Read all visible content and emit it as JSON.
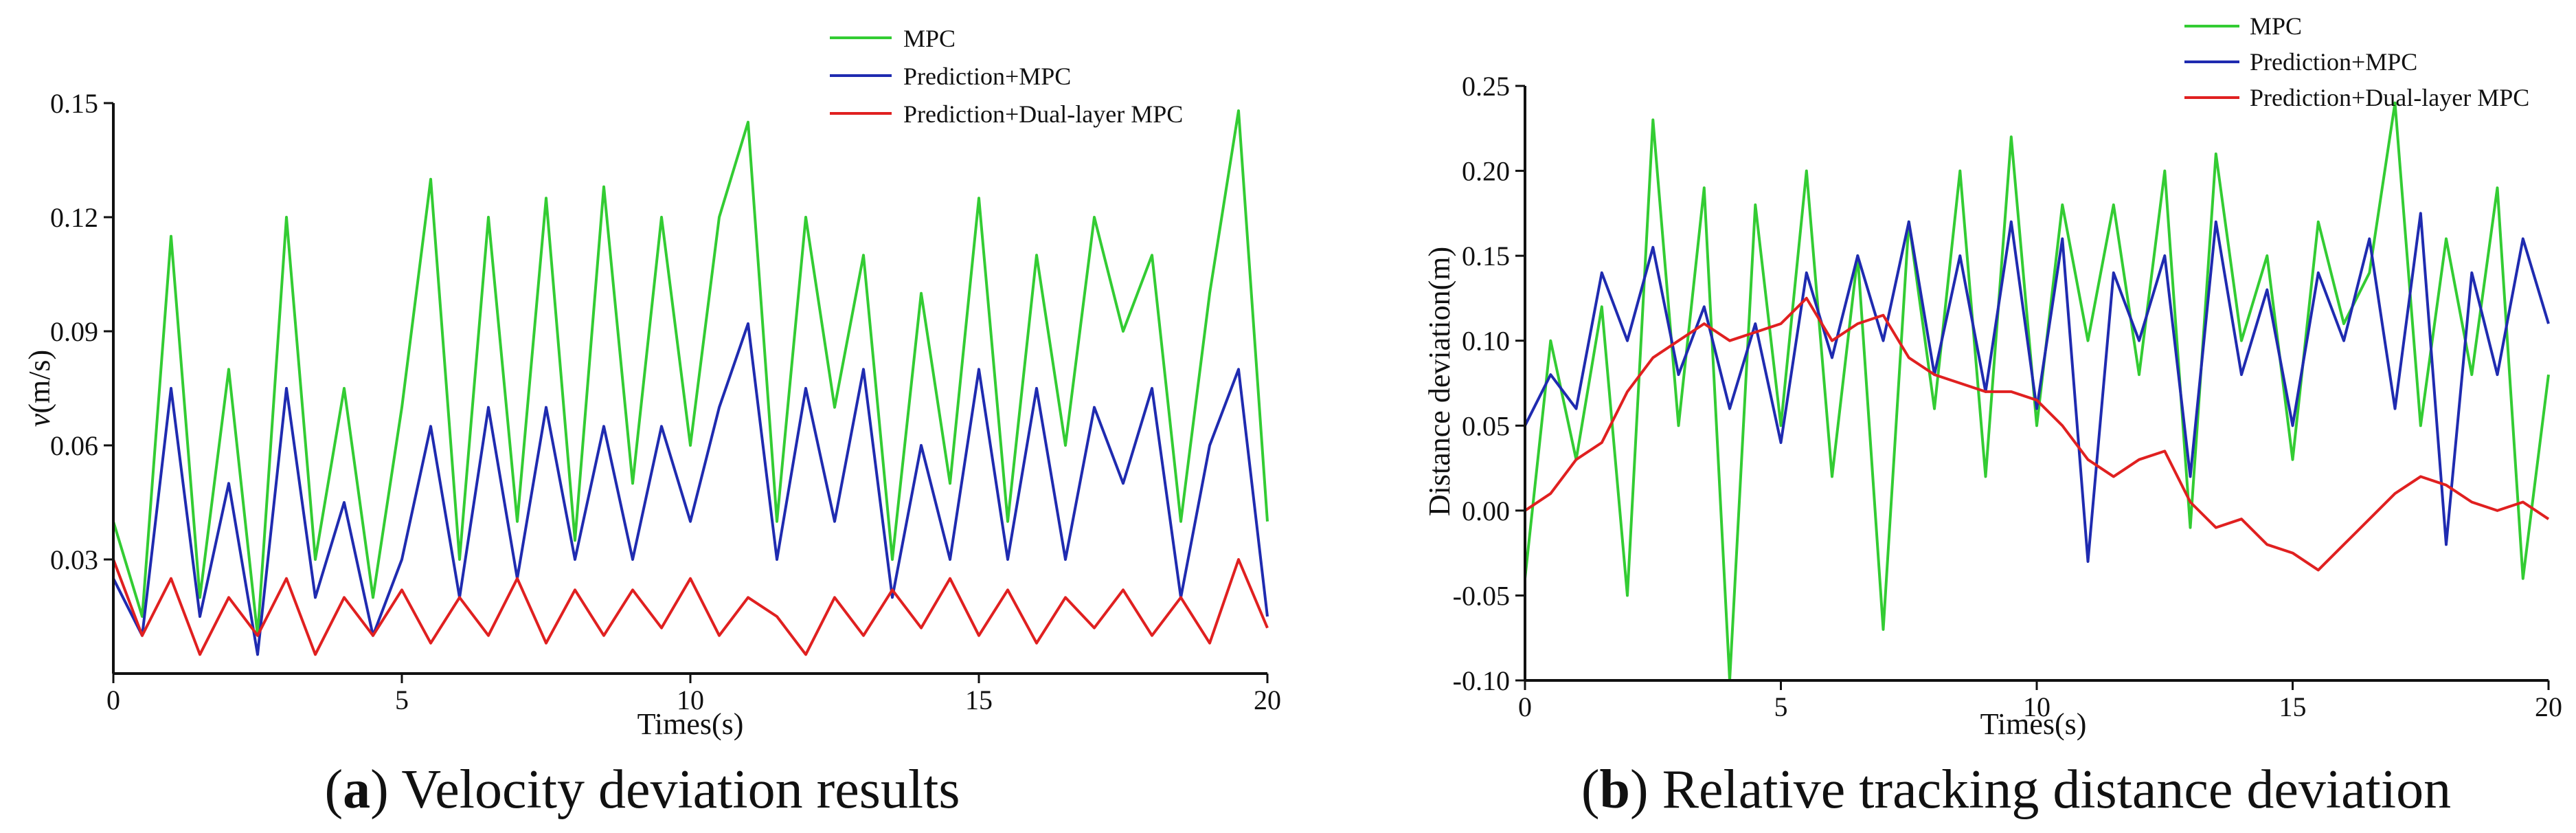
{
  "chart_data": [
    {
      "id": "a",
      "type": "line",
      "caption_letter": "a",
      "caption_text": ") Velocity deviation results",
      "xlabel": "Times(s)",
      "ylabel_var": "v",
      "ylabel_unit": "(m/s)",
      "xlim": [
        0,
        20
      ],
      "ylim": [
        0,
        0.15
      ],
      "xticks": [
        0,
        5,
        10,
        15,
        20
      ],
      "xtick_labels": [
        "0",
        "5",
        "10",
        "15",
        "20"
      ],
      "yticks": [
        0.03,
        0.06,
        0.09,
        0.12,
        0.15
      ],
      "ytick_labels": [
        "0.03",
        "0.06",
        "0.09",
        "0.12",
        "0.15"
      ],
      "legend_position": "top-right",
      "series": [
        {
          "name": "MPC",
          "color": "#33cc33",
          "x": [
            0,
            0.5,
            1,
            1.5,
            2,
            2.5,
            3,
            3.5,
            4,
            4.5,
            5,
            5.5,
            6,
            6.5,
            7,
            7.5,
            8,
            8.5,
            9,
            9.5,
            10,
            10.5,
            11,
            11.5,
            12,
            12.5,
            13,
            13.5,
            14,
            14.5,
            15,
            15.5,
            16,
            16.5,
            17,
            17.5,
            18,
            18.5,
            19,
            19.5,
            20
          ],
          "y": [
            0.04,
            0.015,
            0.115,
            0.02,
            0.08,
            0.01,
            0.12,
            0.03,
            0.075,
            0.02,
            0.07,
            0.13,
            0.03,
            0.12,
            0.04,
            0.125,
            0.035,
            0.128,
            0.05,
            0.12,
            0.06,
            0.12,
            0.145,
            0.04,
            0.12,
            0.07,
            0.11,
            0.03,
            0.1,
            0.05,
            0.125,
            0.04,
            0.11,
            0.06,
            0.12,
            0.09,
            0.11,
            0.04,
            0.1,
            0.148,
            0.04
          ]
        },
        {
          "name": "Prediction+MPC",
          "color": "#1f2bb0",
          "x": [
            0,
            0.5,
            1,
            1.5,
            2,
            2.5,
            3,
            3.5,
            4,
            4.5,
            5,
            5.5,
            6,
            6.5,
            7,
            7.5,
            8,
            8.5,
            9,
            9.5,
            10,
            10.5,
            11,
            11.5,
            12,
            12.5,
            13,
            13.5,
            14,
            14.5,
            15,
            15.5,
            16,
            16.5,
            17,
            17.5,
            18,
            18.5,
            19,
            19.5,
            20
          ],
          "y": [
            0.025,
            0.01,
            0.075,
            0.015,
            0.05,
            0.005,
            0.075,
            0.02,
            0.045,
            0.01,
            0.03,
            0.065,
            0.02,
            0.07,
            0.025,
            0.07,
            0.03,
            0.065,
            0.03,
            0.065,
            0.04,
            0.07,
            0.092,
            0.03,
            0.075,
            0.04,
            0.08,
            0.02,
            0.06,
            0.03,
            0.08,
            0.03,
            0.075,
            0.03,
            0.07,
            0.05,
            0.075,
            0.02,
            0.06,
            0.08,
            0.015
          ]
        },
        {
          "name": "Prediction+Dual-layer MPC",
          "color": "#e02020",
          "x": [
            0,
            0.5,
            1,
            1.5,
            2,
            2.5,
            3,
            3.5,
            4,
            4.5,
            5,
            5.5,
            6,
            6.5,
            7,
            7.5,
            8,
            8.5,
            9,
            9.5,
            10,
            10.5,
            11,
            11.5,
            12,
            12.5,
            13,
            13.5,
            14,
            14.5,
            15,
            15.5,
            16,
            16.5,
            17,
            17.5,
            18,
            18.5,
            19,
            19.5,
            20
          ],
          "y": [
            0.03,
            0.01,
            0.025,
            0.005,
            0.02,
            0.01,
            0.025,
            0.005,
            0.02,
            0.01,
            0.022,
            0.008,
            0.02,
            0.01,
            0.025,
            0.008,
            0.022,
            0.01,
            0.022,
            0.012,
            0.025,
            0.01,
            0.02,
            0.015,
            0.005,
            0.02,
            0.01,
            0.022,
            0.012,
            0.025,
            0.01,
            0.022,
            0.008,
            0.02,
            0.012,
            0.022,
            0.01,
            0.02,
            0.008,
            0.03,
            0.012
          ]
        }
      ]
    },
    {
      "id": "b",
      "type": "line",
      "caption_letter": "b",
      "caption_text": ") Relative tracking distance deviation",
      "xlabel": "Times(s)",
      "ylabel": "Distance deviation(m)",
      "xlim": [
        0,
        20
      ],
      "ylim": [
        -0.1,
        0.25
      ],
      "xticks": [
        0,
        5,
        10,
        15,
        20
      ],
      "xtick_labels": [
        "0",
        "5",
        "10",
        "15",
        "20"
      ],
      "yticks": [
        -0.1,
        -0.05,
        0.0,
        0.05,
        0.1,
        0.15,
        0.2,
        0.25
      ],
      "ytick_labels": [
        "-0.10",
        "-0.05",
        "0.00",
        "0.05",
        "0.10",
        "0.15",
        "0.20",
        "0.25"
      ],
      "legend_position": "top-right",
      "series": [
        {
          "name": "MPC",
          "color": "#33cc33",
          "x": [
            0,
            0.5,
            1,
            1.5,
            2,
            2.5,
            3,
            3.5,
            4,
            4.5,
            5,
            5.5,
            6,
            6.5,
            7,
            7.5,
            8,
            8.5,
            9,
            9.5,
            10,
            10.5,
            11,
            11.5,
            12,
            12.5,
            13,
            13.5,
            14,
            14.5,
            15,
            15.5,
            16,
            16.5,
            17,
            17.5,
            18,
            18.5,
            19,
            19.5,
            20
          ],
          "y": [
            -0.04,
            0.1,
            0.03,
            0.12,
            -0.05,
            0.23,
            0.05,
            0.19,
            -0.1,
            0.18,
            0.05,
            0.2,
            0.02,
            0.15,
            -0.07,
            0.17,
            0.06,
            0.2,
            0.02,
            0.22,
            0.05,
            0.18,
            0.1,
            0.18,
            0.08,
            0.2,
            -0.01,
            0.21,
            0.1,
            0.15,
            0.03,
            0.17,
            0.11,
            0.14,
            0.24,
            0.05,
            0.16,
            0.08,
            0.19,
            -0.04,
            0.08
          ]
        },
        {
          "name": "Prediction+MPC",
          "color": "#1f2bb0",
          "x": [
            0,
            0.5,
            1,
            1.5,
            2,
            2.5,
            3,
            3.5,
            4,
            4.5,
            5,
            5.5,
            6,
            6.5,
            7,
            7.5,
            8,
            8.5,
            9,
            9.5,
            10,
            10.5,
            11,
            11.5,
            12,
            12.5,
            13,
            13.5,
            14,
            14.5,
            15,
            15.5,
            16,
            16.5,
            17,
            17.5,
            18,
            18.5,
            19,
            19.5,
            20
          ],
          "y": [
            0.05,
            0.08,
            0.06,
            0.14,
            0.1,
            0.155,
            0.08,
            0.12,
            0.06,
            0.11,
            0.04,
            0.14,
            0.09,
            0.15,
            0.1,
            0.17,
            0.08,
            0.15,
            0.07,
            0.17,
            0.06,
            0.16,
            -0.03,
            0.14,
            0.1,
            0.15,
            0.02,
            0.17,
            0.08,
            0.13,
            0.05,
            0.14,
            0.1,
            0.16,
            0.06,
            0.175,
            -0.02,
            0.14,
            0.08,
            0.16,
            0.11
          ]
        },
        {
          "name": "Prediction+Dual-layer MPC",
          "color": "#e02020",
          "x": [
            0,
            0.5,
            1,
            1.5,
            2,
            2.5,
            3,
            3.5,
            4,
            4.5,
            5,
            5.5,
            6,
            6.5,
            7,
            7.5,
            8,
            8.5,
            9,
            9.5,
            10,
            10.5,
            11,
            11.5,
            12,
            12.5,
            13,
            13.5,
            14,
            14.5,
            15,
            15.5,
            16,
            16.5,
            17,
            17.5,
            18,
            18.5,
            19,
            19.5,
            20
          ],
          "y": [
            0.0,
            0.01,
            0.03,
            0.04,
            0.07,
            0.09,
            0.1,
            0.11,
            0.1,
            0.105,
            0.11,
            0.125,
            0.1,
            0.11,
            0.115,
            0.09,
            0.08,
            0.075,
            0.07,
            0.07,
            0.065,
            0.05,
            0.03,
            0.02,
            0.03,
            0.035,
            0.005,
            -0.01,
            -0.005,
            -0.02,
            -0.025,
            -0.035,
            -0.02,
            -0.005,
            0.01,
            0.02,
            0.015,
            0.005,
            0.0,
            0.005,
            -0.005
          ]
        }
      ]
    }
  ]
}
